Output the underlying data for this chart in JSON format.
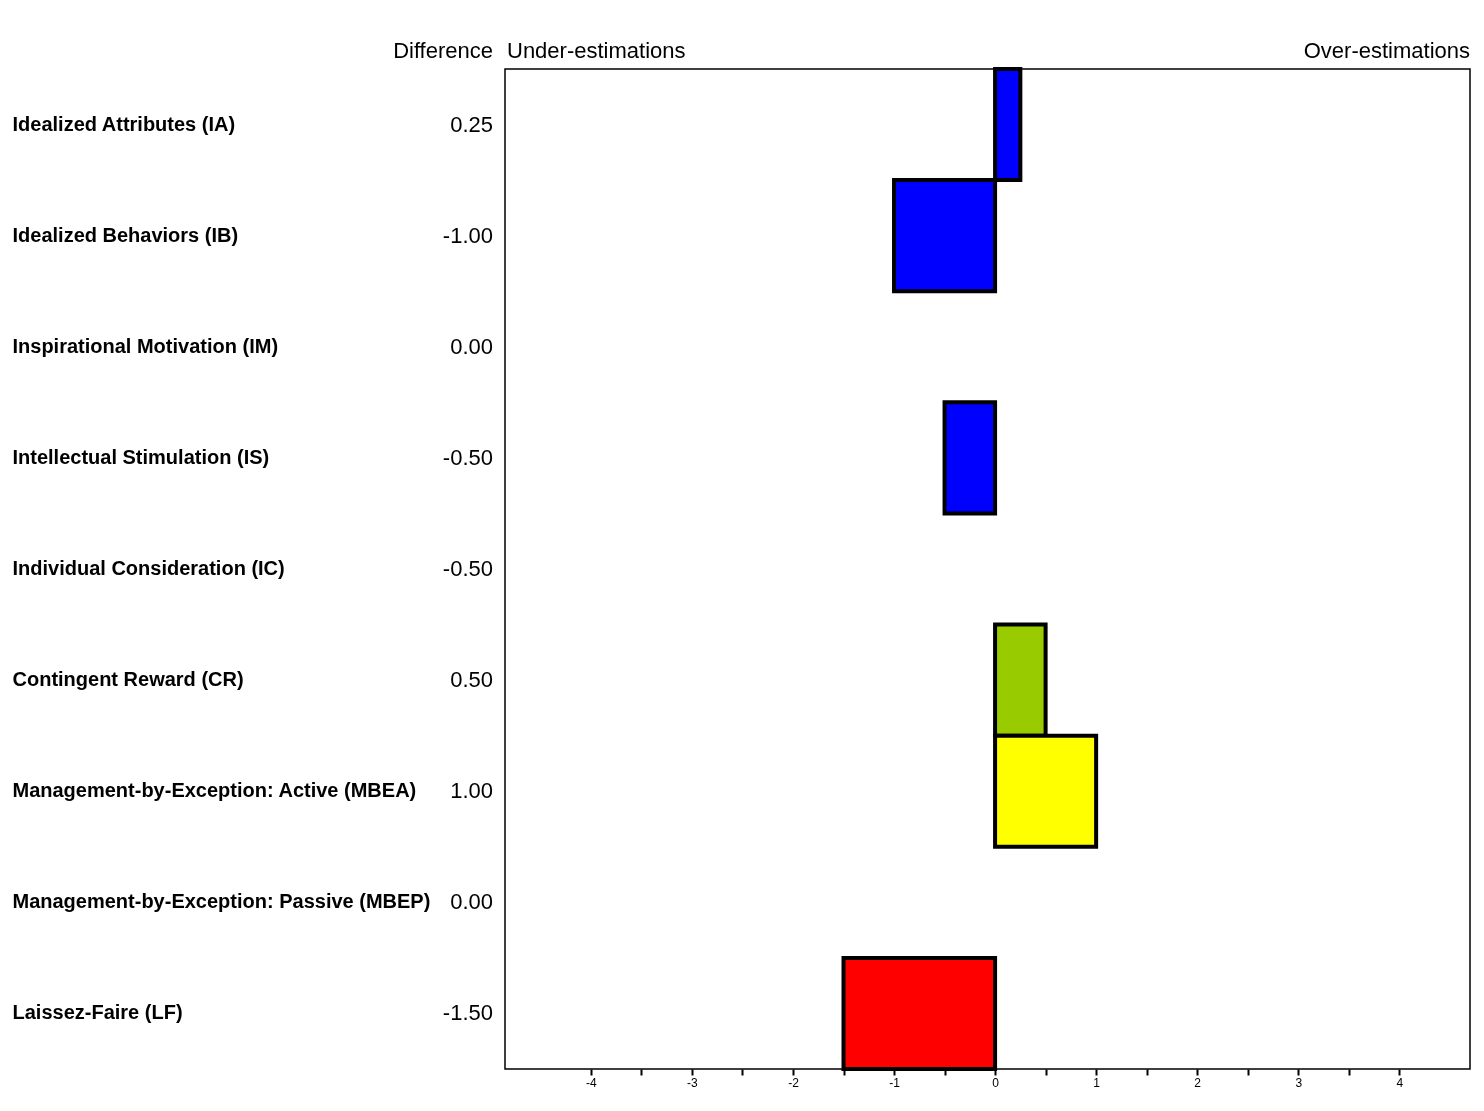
{
  "chart_data": {
    "type": "bar",
    "orientation": "horizontal",
    "categories": [
      "Idealized Attributes (IA)",
      "Idealized Behaviors (IB)",
      "Inspirational Motivation (IM)",
      "Intellectual Stimulation (IS)",
      "Individual Consideration (IC)",
      "Contingent Reward (CR)",
      "Management-by-Exception: Active (MBEA)",
      "Management-by-Exception: Passive (MBEP)",
      "Laissez-Faire (LF)"
    ],
    "values": [
      0.25,
      -1.0,
      0.0,
      -0.5,
      null,
      0.5,
      1.0,
      0.0,
      -1.5
    ],
    "value_labels": [
      "0.25",
      "-1.00",
      "0.00",
      "-0.50",
      "-0.50",
      "0.50",
      "1.00",
      "0.00",
      "-1.50"
    ],
    "colors": [
      "#0000ff",
      "#0000ff",
      "#0000ff",
      "#0000ff",
      "#0000ff",
      "#99cc00",
      "#ffff00",
      "#ffff00",
      "#ff0000"
    ],
    "xlim": [
      -4.85,
      4.7
    ],
    "xticks": [
      -4,
      {
        "value": -3.5,
        "label": null
      },
      -3,
      {
        "value": -2.5,
        "label": null
      },
      -2,
      {
        "value": -1.5,
        "label": null
      },
      -1,
      {
        "value": -0.5,
        "label": null
      },
      0,
      {
        "value": 0.5,
        "label": null
      },
      1,
      {
        "value": 1.5,
        "label": null
      },
      2,
      {
        "value": 2.5,
        "label": null
      },
      3,
      {
        "value": 3.5,
        "label": null
      },
      4
    ],
    "annotations": [
      "Difference",
      "Under-estimations",
      "Over-estimations"
    ],
    "grid": false
  }
}
